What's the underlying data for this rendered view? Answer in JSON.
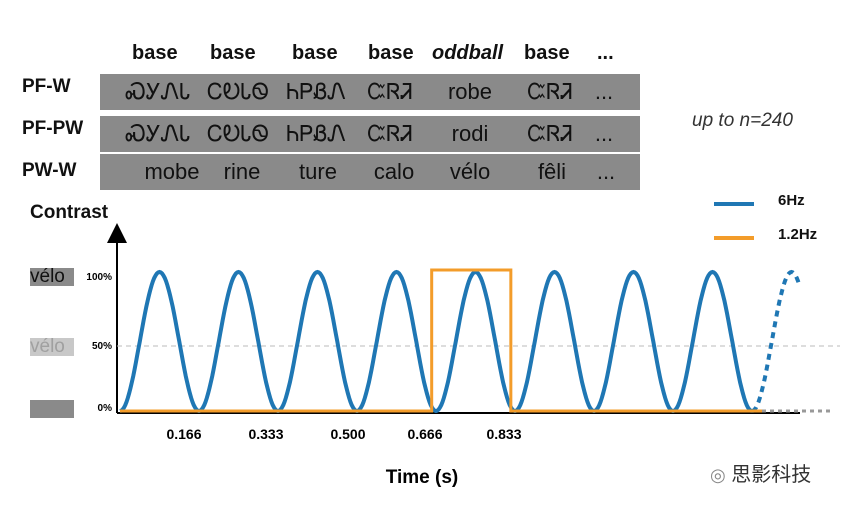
{
  "headers": [
    "base",
    "base",
    "base",
    "base",
    "oddball",
    "base",
    "..."
  ],
  "rows": [
    {
      "label": "PF-W",
      "cells": [
        "ᏍᎩᏁᏓ",
        "ᏟᎧᏓᏫ",
        "ᏂᏢᏰᏁ",
        "ᏨᏒᏘ",
        "robe",
        "ᏨᏒᏘ",
        "..."
      ]
    },
    {
      "label": "PF-PW",
      "cells": [
        "ᏍᎩᏁᏓ",
        "ᏟᎧᏓᏫ",
        "ᏂᏢᏰᏁ",
        "ᏨᏒᏘ",
        "rodi",
        "ᏨᏒᏘ",
        "..."
      ]
    },
    {
      "label": "PW-W",
      "cells": [
        "mobe",
        "rine",
        "ture",
        "calo",
        "vélo",
        "fêli",
        "..."
      ]
    }
  ],
  "note": "up to n=240",
  "axis": {
    "ylabel": "Contrast",
    "xlabel": "Time (s)"
  },
  "contrast_examples": {
    "full": "vélo",
    "half": "vélo"
  },
  "ticks_y": [
    "100%",
    "50%",
    "0%"
  ],
  "ticks_x": [
    "0.166",
    "0.333",
    "0.500",
    "0.666",
    "0.833"
  ],
  "legend": [
    {
      "label": "6Hz",
      "color": "#1f77b4"
    },
    {
      "label": "1.2Hz",
      "color": "#f39c2a"
    }
  ],
  "watermark": "思影科技",
  "chart_data": {
    "type": "line",
    "xlabel": "Time (s)",
    "ylabel": "Contrast",
    "x_ticks": [
      0.166,
      0.333,
      0.5,
      0.666,
      0.833
    ],
    "y_ticks": [
      0,
      50,
      100
    ],
    "series": [
      {
        "name": "6Hz",
        "type": "sinusoid",
        "frequency_hz": 6,
        "min": 0,
        "max": 100,
        "cycles_shown": 8
      },
      {
        "name": "1.2Hz",
        "type": "square",
        "frequency_hz": 1.2,
        "min": 0,
        "max": 100,
        "pulse_start": 0.666,
        "pulse_end": 0.833
      }
    ]
  }
}
